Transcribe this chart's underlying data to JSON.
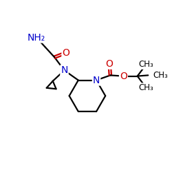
{
  "bg_color": "#ffffff",
  "bond_color": "#000000",
  "n_color": "#0000cc",
  "o_color": "#cc0000",
  "line_width": 1.6,
  "font_size_atoms": 10,
  "font_size_small": 8.5,
  "figsize": [
    2.5,
    2.5
  ],
  "dpi": 100,
  "xlim": [
    0,
    10
  ],
  "ylim": [
    0,
    10
  ]
}
